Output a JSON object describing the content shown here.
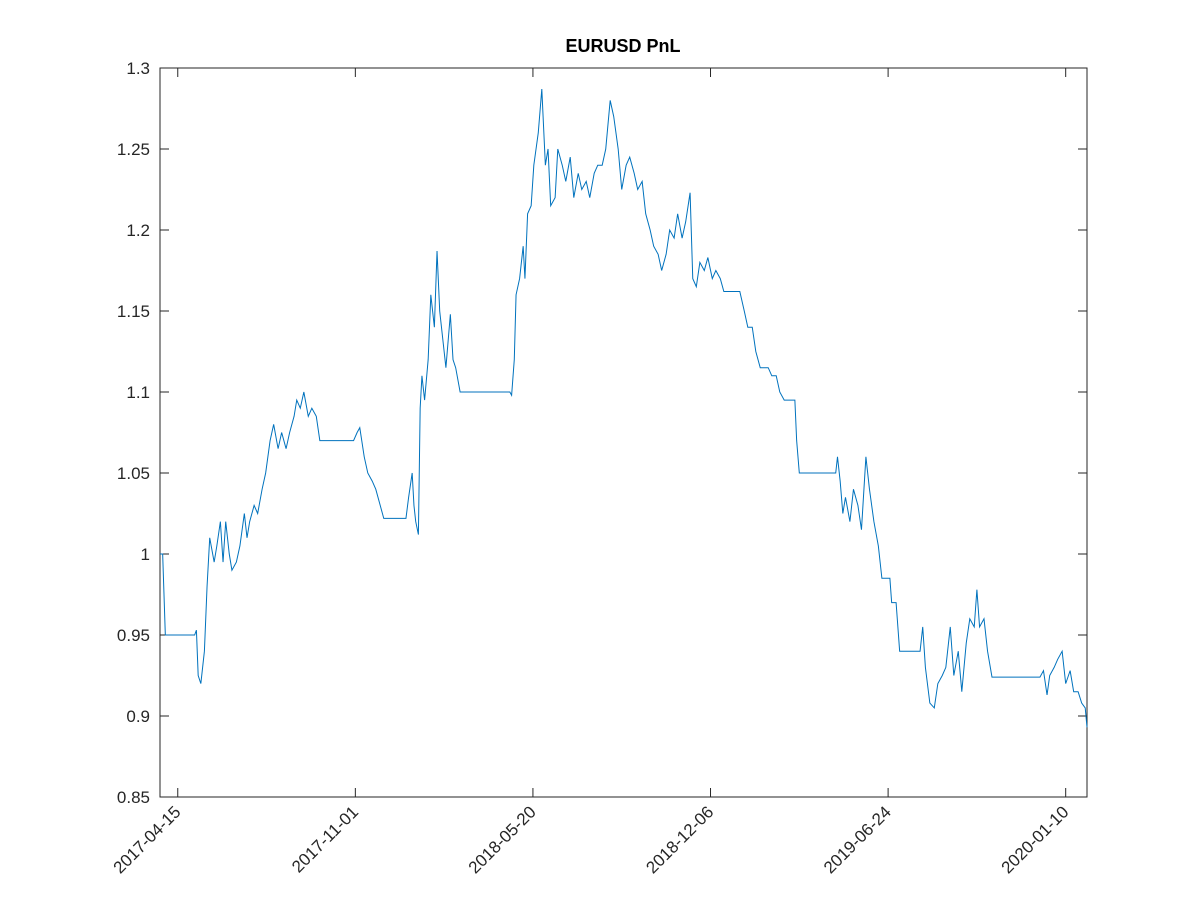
{
  "chart_data": {
    "type": "line",
    "title": "EURUSD PnL",
    "xlim": [
      "2017-03-26",
      "2020-02-03"
    ],
    "xticks": [
      "2017-04-15",
      "2017-11-01",
      "2018-05-20",
      "2018-12-06",
      "2019-06-24",
      "2020-01-10"
    ],
    "ylim": [
      0.85,
      1.3
    ],
    "yticks": [
      0.85,
      0.9,
      0.95,
      1,
      1.05,
      1.1,
      1.15,
      1.2,
      1.25,
      1.3
    ],
    "grid": false,
    "x": [
      "2017-03-26",
      "2017-03-29",
      "2017-04-01",
      "2017-05-04",
      "2017-05-06",
      "2017-05-08",
      "2017-05-11",
      "2017-05-15",
      "2017-05-18",
      "2017-05-21",
      "2017-05-26",
      "2017-05-29",
      "2017-06-02",
      "2017-06-05",
      "2017-06-08",
      "2017-06-12",
      "2017-06-15",
      "2017-06-20",
      "2017-06-24",
      "2017-06-29",
      "2017-07-02",
      "2017-07-05",
      "2017-07-10",
      "2017-07-14",
      "2017-07-19",
      "2017-07-23",
      "2017-07-28",
      "2017-08-01",
      "2017-08-06",
      "2017-08-10",
      "2017-08-15",
      "2017-08-19",
      "2017-08-24",
      "2017-08-27",
      "2017-08-31",
      "2017-09-04",
      "2017-09-09",
      "2017-09-13",
      "2017-09-18",
      "2017-09-22",
      "2017-10-30",
      "2017-11-03",
      "2017-11-06",
      "2017-11-11",
      "2017-11-15",
      "2017-11-20",
      "2017-11-24",
      "2017-11-29",
      "2017-12-03",
      "2017-12-28",
      "2017-12-31",
      "2018-01-04",
      "2018-01-06",
      "2018-01-08",
      "2018-01-11",
      "2018-01-13",
      "2018-01-15",
      "2018-01-18",
      "2018-01-22",
      "2018-01-25",
      "2018-01-29",
      "2018-02-01",
      "2018-02-04",
      "2018-02-08",
      "2018-02-11",
      "2018-02-16",
      "2018-02-19",
      "2018-02-22",
      "2018-02-27",
      "2018-04-24",
      "2018-04-26",
      "2018-04-29",
      "2018-05-01",
      "2018-05-05",
      "2018-05-09",
      "2018-05-11",
      "2018-05-14",
      "2018-05-18",
      "2018-05-21",
      "2018-05-26",
      "2018-05-30",
      "2018-06-03",
      "2018-06-06",
      "2018-06-09",
      "2018-06-14",
      "2018-06-17",
      "2018-06-22",
      "2018-06-26",
      "2018-07-01",
      "2018-07-05",
      "2018-07-10",
      "2018-07-14",
      "2018-07-19",
      "2018-07-23",
      "2018-07-28",
      "2018-08-01",
      "2018-08-06",
      "2018-08-10",
      "2018-08-15",
      "2018-08-19",
      "2018-08-24",
      "2018-08-28",
      "2018-09-02",
      "2018-09-06",
      "2018-09-11",
      "2018-09-15",
      "2018-09-20",
      "2018-09-24",
      "2018-09-29",
      "2018-10-03",
      "2018-10-08",
      "2018-10-12",
      "2018-10-17",
      "2018-10-21",
      "2018-10-26",
      "2018-10-30",
      "2018-11-04",
      "2018-11-08",
      "2018-11-13",
      "2018-11-16",
      "2018-11-20",
      "2018-11-24",
      "2018-11-29",
      "2018-12-03",
      "2018-12-08",
      "2018-12-12",
      "2018-12-17",
      "2018-12-21",
      "2019-01-08",
      "2019-01-13",
      "2019-01-17",
      "2019-01-22",
      "2019-01-26",
      "2019-01-31",
      "2019-02-09",
      "2019-02-13",
      "2019-02-18",
      "2019-02-22",
      "2019-02-27",
      "2019-03-11",
      "2019-03-13",
      "2019-03-16",
      "2019-04-26",
      "2019-04-28",
      "2019-05-01",
      "2019-05-04",
      "2019-05-07",
      "2019-05-12",
      "2019-05-16",
      "2019-05-21",
      "2019-05-25",
      "2019-05-30",
      "2019-06-03",
      "2019-06-08",
      "2019-06-13",
      "2019-06-17",
      "2019-06-26",
      "2019-06-28",
      "2019-07-03",
      "2019-07-07",
      "2019-07-30",
      "2019-08-02",
      "2019-08-05",
      "2019-08-10",
      "2019-08-15",
      "2019-08-19",
      "2019-08-24",
      "2019-08-28",
      "2019-09-02",
      "2019-09-06",
      "2019-09-11",
      "2019-09-15",
      "2019-09-20",
      "2019-09-24",
      "2019-09-29",
      "2019-10-02",
      "2019-10-05",
      "2019-10-10",
      "2019-10-14",
      "2019-10-19",
      "2019-12-12",
      "2019-12-16",
      "2019-12-20",
      "2019-12-23",
      "2019-12-28",
      "2020-01-01",
      "2020-01-06",
      "2020-01-10",
      "2020-01-15",
      "2020-01-19",
      "2020-01-24",
      "2020-01-28",
      "2020-02-01",
      "2020-02-03"
    ],
    "series": [
      {
        "color": "#0072bd",
        "values": [
          1.0,
          1.0,
          0.95,
          0.95,
          0.953,
          0.925,
          0.92,
          0.94,
          0.98,
          1.01,
          0.995,
          1.005,
          1.02,
          0.995,
          1.02,
          1.0,
          0.99,
          0.995,
          1.005,
          1.025,
          1.01,
          1.02,
          1.03,
          1.025,
          1.04,
          1.05,
          1.07,
          1.08,
          1.065,
          1.075,
          1.065,
          1.075,
          1.085,
          1.095,
          1.09,
          1.1,
          1.085,
          1.09,
          1.085,
          1.07,
          1.07,
          1.075,
          1.078,
          1.06,
          1.05,
          1.045,
          1.04,
          1.03,
          1.022,
          1.022,
          1.035,
          1.05,
          1.03,
          1.02,
          1.012,
          1.09,
          1.11,
          1.095,
          1.12,
          1.16,
          1.14,
          1.187,
          1.15,
          1.13,
          1.115,
          1.148,
          1.12,
          1.115,
          1.1,
          1.1,
          1.098,
          1.12,
          1.16,
          1.17,
          1.19,
          1.17,
          1.21,
          1.215,
          1.24,
          1.26,
          1.287,
          1.24,
          1.25,
          1.215,
          1.22,
          1.25,
          1.24,
          1.23,
          1.245,
          1.22,
          1.235,
          1.225,
          1.23,
          1.22,
          1.235,
          1.24,
          1.24,
          1.25,
          1.28,
          1.27,
          1.25,
          1.225,
          1.24,
          1.245,
          1.235,
          1.225,
          1.23,
          1.21,
          1.2,
          1.19,
          1.185,
          1.175,
          1.185,
          1.2,
          1.195,
          1.21,
          1.195,
          1.205,
          1.223,
          1.17,
          1.165,
          1.18,
          1.175,
          1.183,
          1.17,
          1.175,
          1.17,
          1.162,
          1.162,
          1.15,
          1.14,
          1.14,
          1.125,
          1.115,
          1.115,
          1.11,
          1.11,
          1.1,
          1.095,
          1.095,
          1.07,
          1.05,
          1.05,
          1.06,
          1.045,
          1.025,
          1.035,
          1.02,
          1.04,
          1.03,
          1.015,
          1.06,
          1.04,
          1.02,
          1.005,
          0.985,
          0.985,
          0.97,
          0.97,
          0.94,
          0.94,
          0.955,
          0.93,
          0.908,
          0.905,
          0.92,
          0.925,
          0.93,
          0.955,
          0.925,
          0.94,
          0.915,
          0.945,
          0.96,
          0.955,
          0.978,
          0.955,
          0.96,
          0.94,
          0.924,
          0.924,
          0.928,
          0.913,
          0.925,
          0.93,
          0.935,
          0.94,
          0.92,
          0.928,
          0.915,
          0.915,
          0.908,
          0.905,
          0.893
        ]
      }
    ]
  }
}
